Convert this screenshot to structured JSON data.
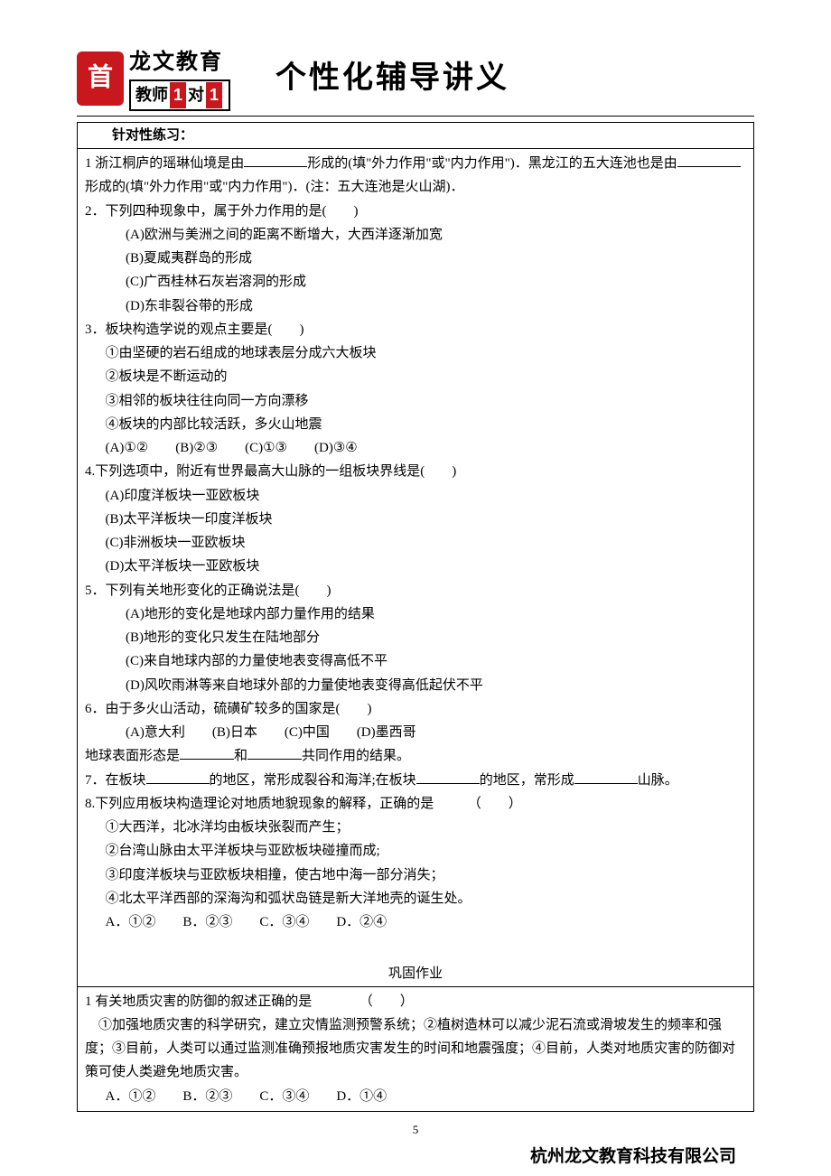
{
  "logo": {
    "brand_top": "龙文教育",
    "brand_bottom_prefix": "教师",
    "brand_bottom_num1": "1",
    "brand_bottom_mid": "对",
    "brand_bottom_num2": "1",
    "brand_color": "#c8181e"
  },
  "main_title": "个性化辅导讲义",
  "section1": {
    "header": "针对性练习：",
    "q1_a": "1 浙江桐庐的瑶琳仙境是由",
    "q1_b": "形成的(填\"外力作用\"或\"内力作用\")．黑龙江的五大连池也是由",
    "q1_c": "形成的(填\"外力作用\"或\"内力作用\")．(注：五大连池是火山湖)．",
    "q2": "2．下列四种现象中，属于外力作用的是(　　)",
    "q2a": "(A)欧洲与美洲之间的距离不断增大，大西洋逐渐加宽",
    "q2b": "(B)夏威夷群岛的形成",
    "q2c": "(C)广西桂林石灰岩溶洞的形成",
    "q2d": "(D)东非裂谷带的形成",
    "q3": "3．板块构造学说的观点主要是(　　)",
    "q3_1": "①由坚硬的岩石组成的地球表层分成六大板块",
    "q3_2": "②板块是不断运动的",
    "q3_3": "③相邻的板块往往向同一方向漂移",
    "q3_4": "④板块的内部比较活跃，多火山地震",
    "q3_opts": "(A)①②　　(B)②③　　(C)①③　　(D)③④",
    "q4": "4.下列选项中，附近有世界最高大山脉的一组板块界线是(　　)",
    "q4a": "(A)印度洋板块一亚欧板块",
    "q4b": "(B)太平洋板块一印度洋板块",
    "q4c": "(C)非洲板块一亚欧板块",
    "q4d": "(D)太平洋板块一亚欧板块",
    "q5": "5．下列有关地形变化的正确说法是(　　)",
    "q5a": "(A)地形的变化是地球内部力量作用的结果",
    "q5b": "(B)地形的变化只发生在陆地部分",
    "q5c": "(C)来自地球内部的力量使地表变得高低不平",
    "q5d": "(D)风吹雨淋等来自地球外部的力量使地表变得高低起伏不平",
    "q6": "6．由于多火山活动，硫磺矿较多的国家是(　　)",
    "q6_opts": "(A)意大利　　(B)日本　　(C)中国　　(D)墨西哥",
    "q6_extra_a": "地球表面形态是",
    "q6_extra_b": "和",
    "q6_extra_c": "共同作用的结果。",
    "q7_a": "7．在板块",
    "q7_b": "的地区，常形成裂谷和海洋;在板块",
    "q7_c": "的地区，常形成",
    "q7_d": "山脉。",
    "q8": "8.下列应用板块构造理论对地质地貌现象的解释，正确的是　　　（　　）",
    "q8_1": "①大西洋，北冰洋均由板块张裂而产生；",
    "q8_2": "②台湾山脉由太平洋板块与亚欧板块碰撞而成;",
    "q8_3": "③印度洋板块与亚欧板块相撞，使古地中海一部分消失；",
    "q8_4": "④北太平洋西部的深海沟和弧状岛链是新大洋地壳的诞生处。",
    "q8_opts": "A．①②　　B．②③　　C．③④　　D．②④"
  },
  "section2": {
    "header": "巩固作业",
    "q1": "1 有关地质灾害的防御的叙述正确的是　　　　（　　）",
    "q1_body": "　①加强地质灾害的科学研究，建立灾情监测预警系统；②植树造林可以减少泥石流或滑坡发生的频率和强度；③目前，人类可以通过监测准确预报地质灾害发生的时间和地震强度；④目前，人类对地质灾害的防御对策可使人类避免地质灾害。",
    "q1_opts": "A．①②　　B．②③　　C．③④　　D．①④"
  },
  "footer": {
    "page_num": "5",
    "company": "杭州龙文教育科技有限公司"
  }
}
